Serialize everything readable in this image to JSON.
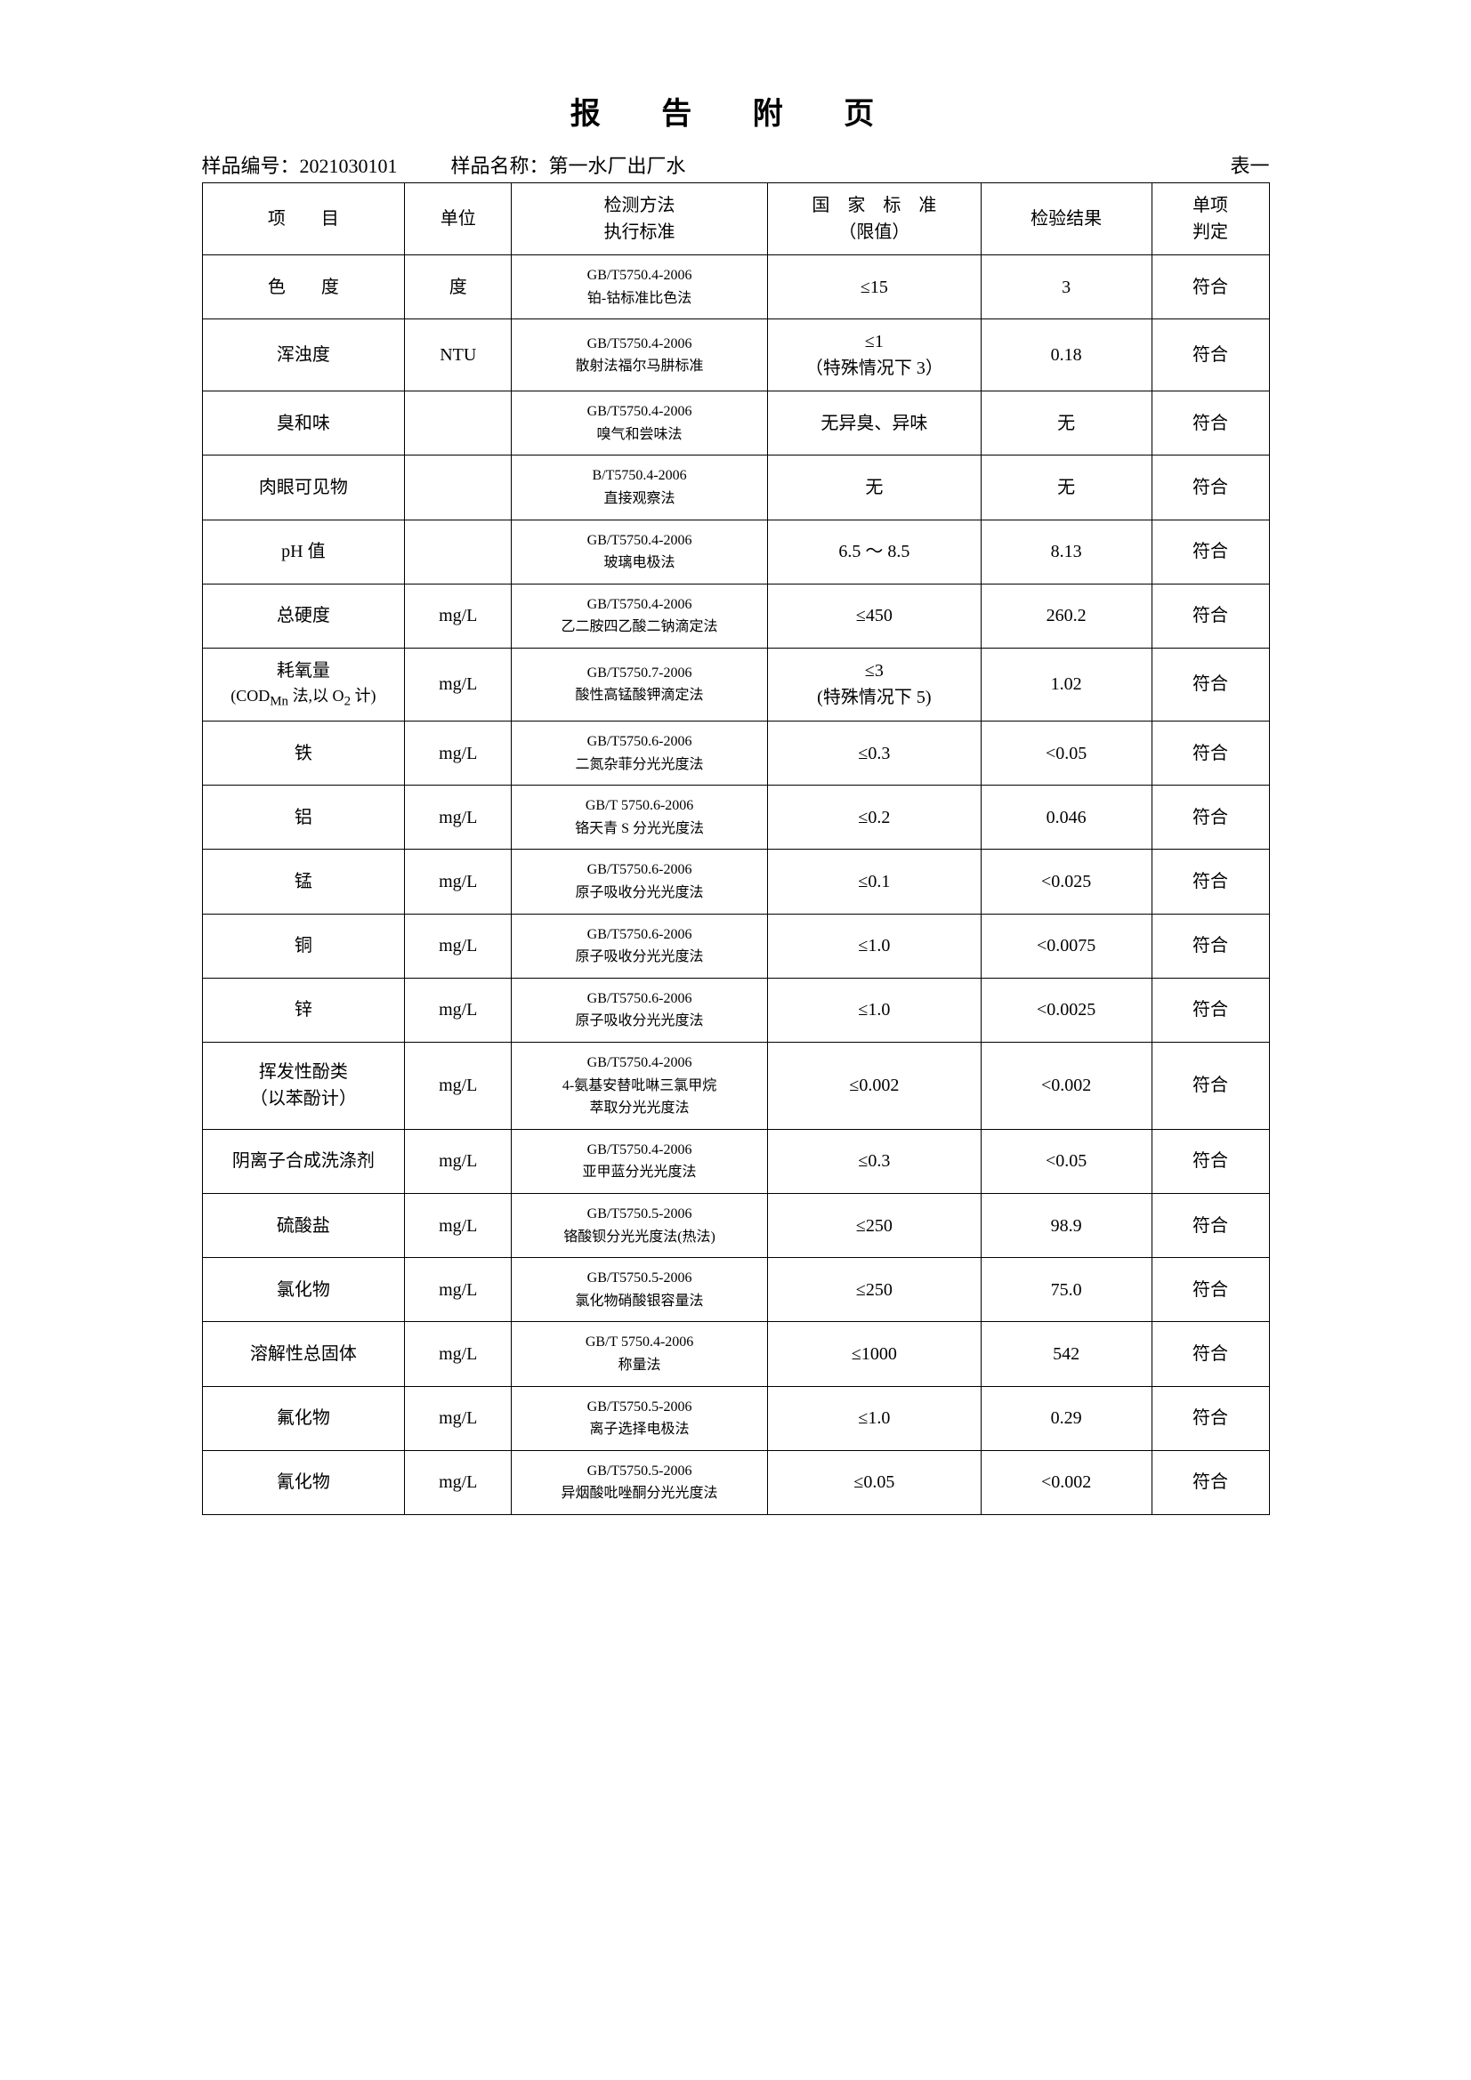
{
  "title": "报 告 附 页",
  "header": {
    "sample_id_label": "样品编号：",
    "sample_id_value": "2021030101",
    "sample_name_label": "样品名称：",
    "sample_name_value": "第一水厂出厂水",
    "table_no": "表一"
  },
  "columns": {
    "item": "项　　目",
    "unit": "单位",
    "method_line1": "检测方法",
    "method_line2": "执行标准",
    "standard_line1": "国　家　标　准",
    "standard_line2": "（限值）",
    "result": "检验结果",
    "verdict_line1": "单项",
    "verdict_line2": "判定"
  },
  "rows": [
    {
      "item": "色　　度",
      "unit": "度",
      "method_line1": "GB/T5750.4-2006",
      "method_line2": "铂-钴标准比色法",
      "standard": "≤15",
      "standard_line2": "",
      "result": "3",
      "verdict": "符合"
    },
    {
      "item": "浑浊度",
      "unit": "NTU",
      "method_line1": "GB/T5750.4-2006",
      "method_line2": "散射法福尔马肼标准",
      "standard": "≤1",
      "standard_line2": "（特殊情况下 3）",
      "result": "0.18",
      "verdict": "符合"
    },
    {
      "item": "臭和味",
      "unit": "",
      "method_line1": "GB/T5750.4-2006",
      "method_line2": "嗅气和尝味法",
      "standard": "无异臭、异味",
      "standard_line2": "",
      "result": "无",
      "verdict": "符合"
    },
    {
      "item": "肉眼可见物",
      "unit": "",
      "method_line1": "B/T5750.4-2006",
      "method_line2": "直接观察法",
      "standard": "无",
      "standard_line2": "",
      "result": "无",
      "verdict": "符合"
    },
    {
      "item": "pH 值",
      "unit": "",
      "method_line1": "GB/T5750.4-2006",
      "method_line2": "玻璃电极法",
      "standard": "6.5 ～ 8.5",
      "standard_line2": "",
      "result": "8.13",
      "verdict": "符合"
    },
    {
      "item": "总硬度",
      "unit": "mg/L",
      "method_line1": "GB/T5750.4-2006",
      "method_line2": "乙二胺四乙酸二钠滴定法",
      "standard": "≤450",
      "standard_line2": "",
      "result": "260.2",
      "verdict": "符合"
    },
    {
      "item_line1": "耗氧量",
      "item_line2_html": "(COD<sub>Mn</sub> 法,以 O<sub>2</sub> 计)",
      "unit": "mg/L",
      "method_line1": "GB/T5750.7-2006",
      "method_line2": "酸性高锰酸钾滴定法",
      "standard": "≤3",
      "standard_line2": "(特殊情况下 5)",
      "result": "1.02",
      "verdict": "符合"
    },
    {
      "item": "铁",
      "unit": "mg/L",
      "method_line1": "GB/T5750.6-2006",
      "method_line2": "二氮杂菲分光光度法",
      "standard": "≤0.3",
      "standard_line2": "",
      "result": "<0.05",
      "verdict": "符合"
    },
    {
      "item": "铝",
      "unit": "mg/L",
      "method_line1": "GB/T 5750.6-2006",
      "method_line2": "铬天青 S 分光光度法",
      "standard": "≤0.2",
      "standard_line2": "",
      "result": "0.046",
      "verdict": "符合"
    },
    {
      "item": "锰",
      "unit": "mg/L",
      "method_line1": "GB/T5750.6-2006",
      "method_line2": "原子吸收分光光度法",
      "standard": "≤0.1",
      "standard_line2": "",
      "result": "<0.025",
      "verdict": "符合"
    },
    {
      "item": "铜",
      "unit": "mg/L",
      "method_line1": "GB/T5750.6-2006",
      "method_line2": "原子吸收分光光度法",
      "standard": "≤1.0",
      "standard_line2": "",
      "result": "<0.0075",
      "verdict": "符合"
    },
    {
      "item": "锌",
      "unit": "mg/L",
      "method_line1": "GB/T5750.6-2006",
      "method_line2": "原子吸收分光光度法",
      "standard": "≤1.0",
      "standard_line2": "",
      "result": "<0.0025",
      "verdict": "符合"
    },
    {
      "item_line1": "挥发性酚类",
      "item_line2": "（以苯酚计）",
      "unit": "mg/L",
      "method_line1": "GB/T5750.4-2006",
      "method_line2": "4-氨基安替吡啉三氯甲烷",
      "method_line3": "萃取分光光度法",
      "standard": "≤0.002",
      "standard_line2": "",
      "result": "<0.002",
      "verdict": "符合"
    },
    {
      "item": "阴离子合成洗涤剂",
      "unit": "mg/L",
      "method_line1": "GB/T5750.4-2006",
      "method_line2": "亚甲蓝分光光度法",
      "standard": "≤0.3",
      "standard_line2": "",
      "result": "<0.05",
      "verdict": "符合"
    },
    {
      "item": "硫酸盐",
      "unit": "mg/L",
      "method_line1": "GB/T5750.5-2006",
      "method_line2": "铬酸钡分光光度法(热法)",
      "standard": "≤250",
      "standard_line2": "",
      "result": "98.9",
      "verdict": "符合"
    },
    {
      "item": "氯化物",
      "unit": "mg/L",
      "method_line1": "GB/T5750.5-2006",
      "method_line2": "氯化物硝酸银容量法",
      "standard": "≤250",
      "standard_line2": "",
      "result": "75.0",
      "verdict": "符合"
    },
    {
      "item": "溶解性总固体",
      "unit": "mg/L",
      "method_line1": "GB/T 5750.4-2006",
      "method_line2": "称量法",
      "standard": "≤1000",
      "standard_line2": "",
      "result": "542",
      "verdict": "符合"
    },
    {
      "item": "氟化物",
      "unit": "mg/L",
      "method_line1": "GB/T5750.5-2006",
      "method_line2": "离子选择电极法",
      "standard": "≤1.0",
      "standard_line2": "",
      "result": "0.29",
      "verdict": "符合"
    },
    {
      "item": "氰化物",
      "unit": "mg/L",
      "method_line1": "GB/T5750.5-2006",
      "method_line2": "异烟酸吡唑酮分光光度法",
      "standard": "≤0.05",
      "standard_line2": "",
      "result": "<0.002",
      "verdict": "符合"
    }
  ]
}
